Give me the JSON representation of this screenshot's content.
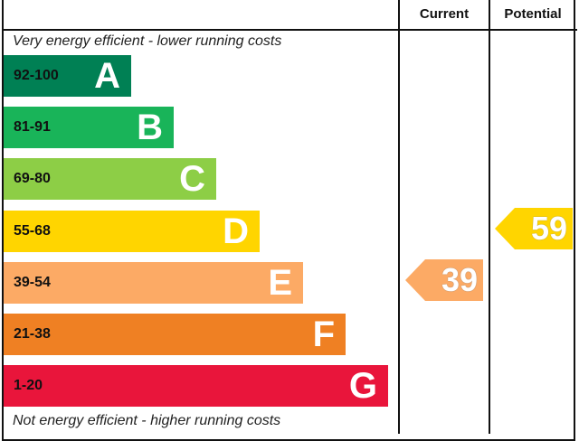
{
  "chart_data": {
    "type": "bar",
    "header": {
      "current": "Current",
      "potential": "Potential"
    },
    "top_caption": "Very energy efficient - lower running costs",
    "bottom_caption": "Not energy efficient - higher running costs",
    "bands": [
      {
        "range": "92-100",
        "letter": "A",
        "color": "#008054"
      },
      {
        "range": "81-91",
        "letter": "B",
        "color": "#19b459"
      },
      {
        "range": "69-80",
        "letter": "C",
        "color": "#8dce46"
      },
      {
        "range": "55-68",
        "letter": "D",
        "color": "#ffd500"
      },
      {
        "range": "39-54",
        "letter": "E",
        "color": "#fcaa65"
      },
      {
        "range": "21-38",
        "letter": "F",
        "color": "#ef8023"
      },
      {
        "range": "1-20",
        "letter": "G",
        "color": "#e9153b"
      }
    ],
    "current": {
      "value": "39",
      "band": "E",
      "color": "#fcaa65"
    },
    "potential": {
      "value": "59",
      "band": "D",
      "color": "#ffd500"
    }
  }
}
